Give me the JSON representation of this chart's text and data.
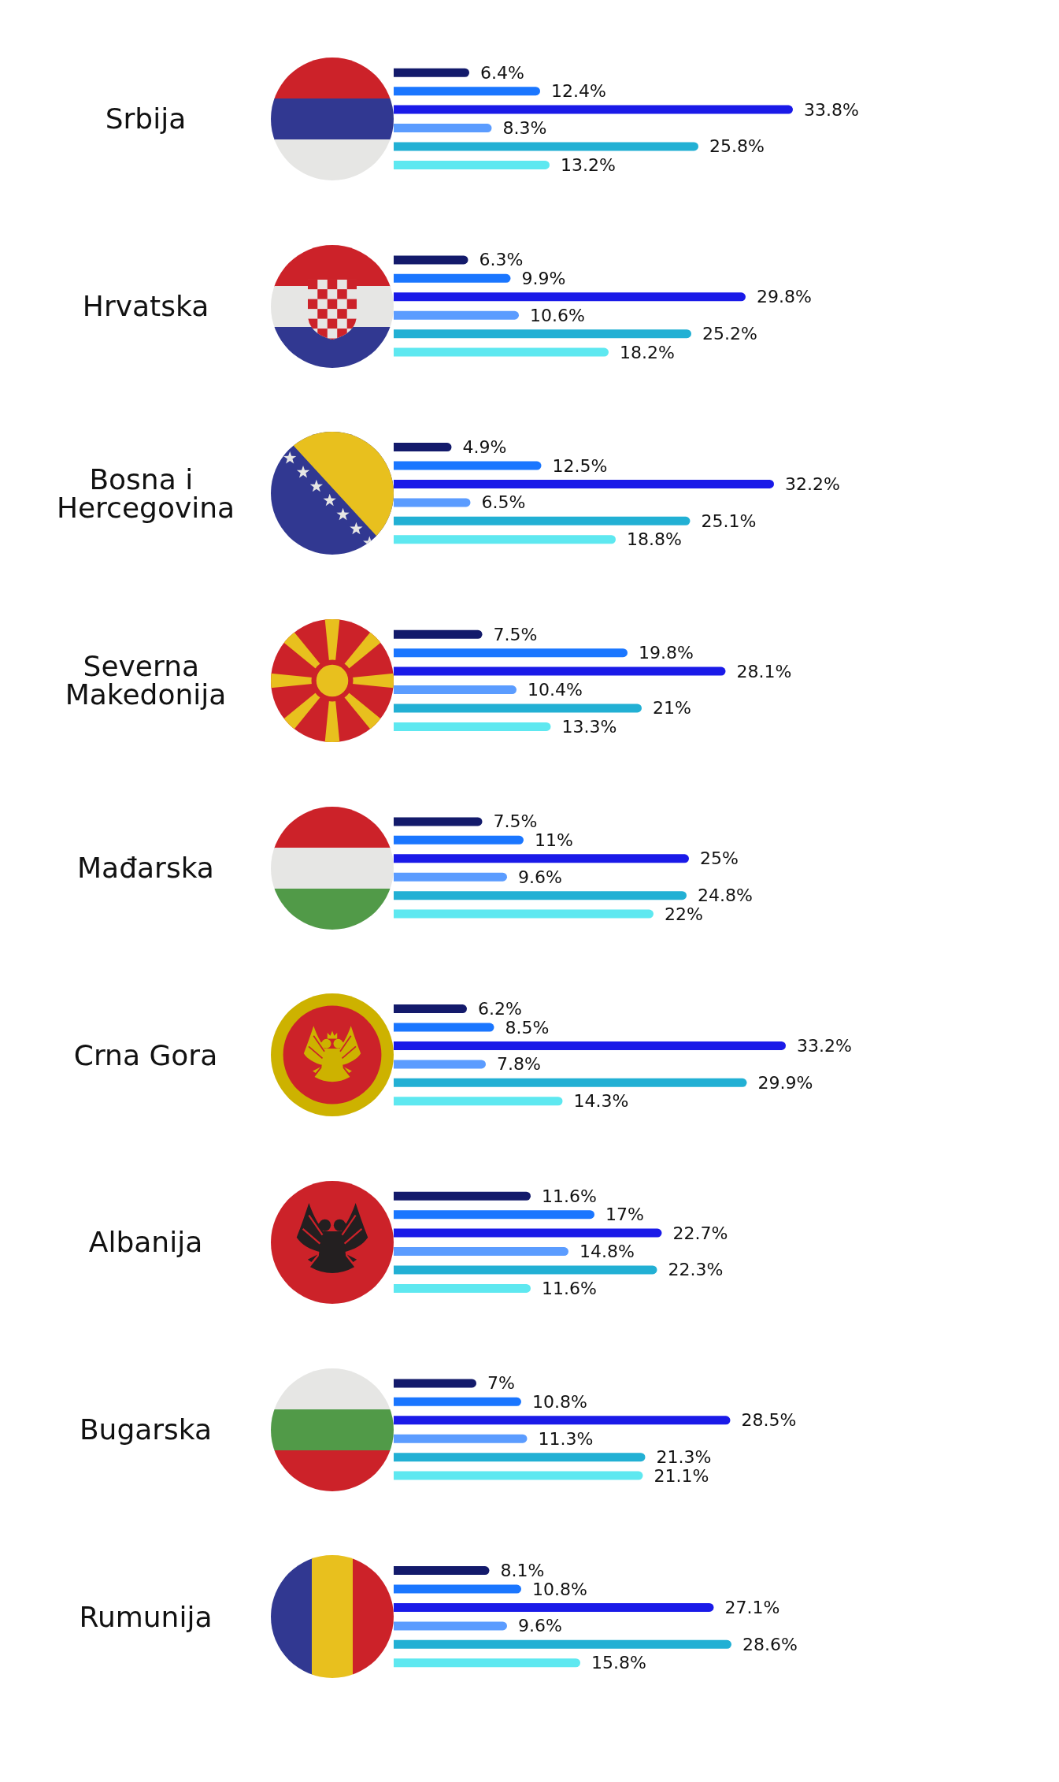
{
  "chart_data": {
    "type": "bar",
    "orientation": "horizontal",
    "tick_labels": "y",
    "categories": [
      "Srbija",
      "Hrvatska",
      "Bosna i Hercegovina",
      "Severna Makedonija",
      "Mađarska",
      "Crna Gora",
      "Albanija",
      "Bugarska",
      "Rumunija"
    ],
    "series": [
      {
        "color": "#131a6b",
        "values": [
          6.4,
          6.3,
          4.9,
          7.5,
          7.5,
          6.2,
          11.6,
          7,
          8.1
        ],
        "value_labels": [
          "6.4%",
          "6.3%",
          "4.9%",
          "7.5%",
          "7.5%",
          "6.2%",
          "11.6%",
          "7%",
          "8.1%"
        ]
      },
      {
        "color": "#1a76ff",
        "values": [
          12.4,
          9.9,
          12.5,
          19.8,
          11,
          8.5,
          17,
          10.8,
          10.8
        ],
        "value_labels": [
          "12.4%",
          "9.9%",
          "12.5%",
          "19.8%",
          "11%",
          "8.5%",
          "17%",
          "10.8%",
          "10.8%"
        ]
      },
      {
        "color": "#1a1ae8",
        "values": [
          33.8,
          29.8,
          32.2,
          28.1,
          25,
          33.2,
          22.7,
          28.5,
          27.1
        ],
        "value_labels": [
          "33.8%",
          "29.8%",
          "32.2%",
          "28.1%",
          "25%",
          "33.2%",
          "22.7%",
          "28.5%",
          "27.1%"
        ]
      },
      {
        "color": "#5b9cff",
        "values": [
          8.3,
          10.6,
          6.5,
          10.4,
          9.6,
          7.8,
          14.8,
          11.3,
          9.6
        ],
        "value_labels": [
          "8.3%",
          "10.6%",
          "6.5%",
          "10.4%",
          "9.6%",
          "7.8%",
          "14.8%",
          "11.3%",
          "9.6%"
        ]
      },
      {
        "color": "#22b0d4",
        "values": [
          25.8,
          25.2,
          25.1,
          21,
          24.8,
          29.9,
          22.3,
          21.3,
          28.6
        ],
        "value_labels": [
          "25.8%",
          "25.2%",
          "25.1%",
          "21%",
          "24.8%",
          "29.9%",
          "22.3%",
          "21.3%",
          "28.6%"
        ]
      },
      {
        "color": "#5ee8f0",
        "values": [
          13.2,
          18.2,
          18.8,
          13.3,
          22,
          14.3,
          11.6,
          21.1,
          15.8
        ],
        "value_labels": [
          "13.2%",
          "18.2%",
          "18.8%",
          "13.3%",
          "22%",
          "14.3%",
          "11.6%",
          "21.1%",
          "15.8%"
        ]
      }
    ]
  }
}
